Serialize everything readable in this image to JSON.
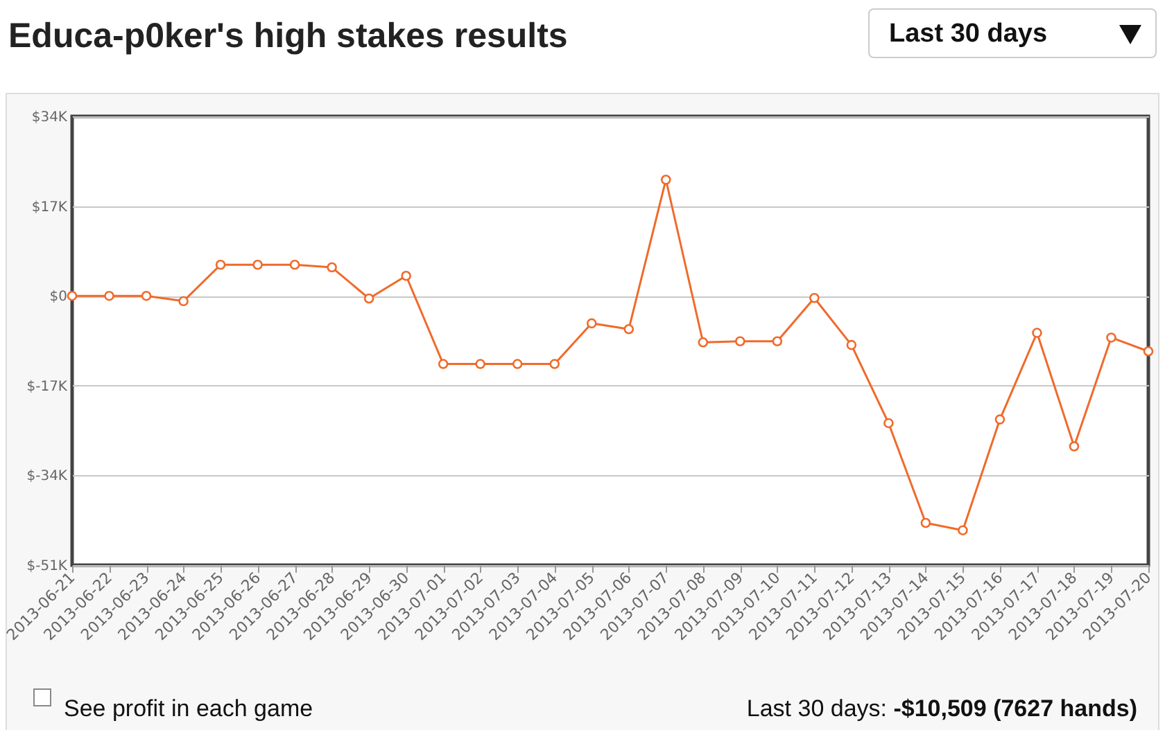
{
  "chart_data": {
    "type": "line",
    "title": "Educa-p0ker's high stakes results",
    "annotations": [
      "Last 30 days",
      "See profit in each game",
      "Last 30 days: -$10,509 (7627 hands)"
    ],
    "categories": [
      "2013-06-21",
      "2013-06-22",
      "2013-06-23",
      "2013-06-24",
      "2013-06-25",
      "2013-06-26",
      "2013-06-27",
      "2013-06-28",
      "2013-06-29",
      "2013-06-30",
      "2013-07-01",
      "2013-07-02",
      "2013-07-03",
      "2013-07-04",
      "2013-07-05",
      "2013-07-06",
      "2013-07-07",
      "2013-07-08",
      "2013-07-09",
      "2013-07-10",
      "2013-07-11",
      "2013-07-12",
      "2013-07-13",
      "2013-07-14",
      "2013-07-15",
      "2013-07-16",
      "2013-07-17",
      "2013-07-18",
      "2013-07-19",
      "2013-07-20"
    ],
    "series": [
      {
        "color": "#f06a2a",
        "values": [
          0,
          0,
          0,
          -1.0,
          5.9,
          5.9,
          5.9,
          5.4,
          -0.5,
          3.8,
          -12.9,
          -12.9,
          -12.9,
          -12.9,
          -5.2,
          -6.3,
          22.0,
          -8.8,
          -8.6,
          -8.6,
          -0.4,
          -9.3,
          -24.1,
          -43.0,
          -44.4,
          -23.4,
          -7.0,
          -28.5,
          -7.9,
          -10.5
        ]
      }
    ],
    "ylim": [
      -51,
      34
    ],
    "yticks": [
      {
        "value": -51,
        "label": "$-51K"
      },
      {
        "value": -34,
        "label": "$-34K"
      },
      {
        "value": -17,
        "label": "$-17K"
      },
      {
        "value": 0,
        "label": "$0"
      },
      {
        "value": 17,
        "label": "$17K"
      },
      {
        "value": 34,
        "label": "$34K"
      }
    ],
    "grid": "y",
    "marker": "circle",
    "line_style": "solid"
  }
}
